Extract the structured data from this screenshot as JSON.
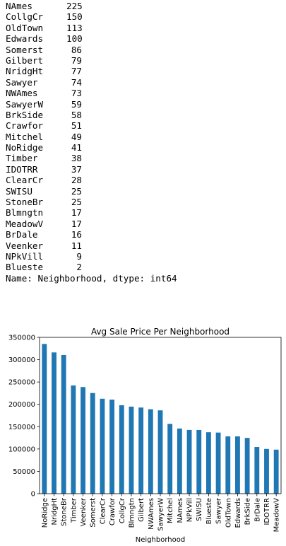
{
  "value_counts": {
    "rows": [
      {
        "name": "NAmes",
        "count": "225"
      },
      {
        "name": "CollgCr",
        "count": "150"
      },
      {
        "name": "OldTown",
        "count": "113"
      },
      {
        "name": "Edwards",
        "count": "100"
      },
      {
        "name": "Somerst",
        "count": "86"
      },
      {
        "name": "Gilbert",
        "count": "79"
      },
      {
        "name": "NridgHt",
        "count": "77"
      },
      {
        "name": "Sawyer",
        "count": "74"
      },
      {
        "name": "NWAmes",
        "count": "73"
      },
      {
        "name": "SawyerW",
        "count": "59"
      },
      {
        "name": "BrkSide",
        "count": "58"
      },
      {
        "name": "Crawfor",
        "count": "51"
      },
      {
        "name": "Mitchel",
        "count": "49"
      },
      {
        "name": "NoRidge",
        "count": "41"
      },
      {
        "name": "Timber",
        "count": "38"
      },
      {
        "name": "IDOTRR",
        "count": "37"
      },
      {
        "name": "ClearCr",
        "count": "28"
      },
      {
        "name": "SWISU",
        "count": "25"
      },
      {
        "name": "StoneBr",
        "count": "25"
      },
      {
        "name": "Blmngtn",
        "count": "17"
      },
      {
        "name": "MeadowV",
        "count": "17"
      },
      {
        "name": "BrDale",
        "count": "16"
      },
      {
        "name": "Veenker",
        "count": "11"
      },
      {
        "name": "NPkVill",
        "count": "9"
      },
      {
        "name": "Blueste",
        "count": "2"
      }
    ],
    "footer": "Name: Neighborhood, dtype: int64"
  },
  "chart_data": {
    "type": "bar",
    "title": "Avg Sale Price Per Neighborhood",
    "xlabel": "Neighborhood",
    "ylabel": "",
    "ylim": [
      0,
      350000
    ],
    "yticks": [
      0,
      50000,
      100000,
      150000,
      200000,
      250000,
      300000,
      350000
    ],
    "grid": false,
    "bar_color": "#1f77b4",
    "categories": [
      "NoRidge",
      "NridgHt",
      "StoneBr",
      "Timber",
      "Veenker",
      "Somerst",
      "ClearCr",
      "Crawfor",
      "CollgCr",
      "Blmngtn",
      "Gilbert",
      "NWAmes",
      "SawyerW",
      "Mitchel",
      "NAmes",
      "NPkVill",
      "SWISU",
      "Blueste",
      "Sawyer",
      "OldTown",
      "Edwards",
      "BrkSide",
      "BrDale",
      "IDOTRR",
      "MeadowV"
    ],
    "values": [
      335295,
      316271,
      310499,
      242247,
      238773,
      225380,
      212565,
      210625,
      197966,
      194871,
      192855,
      189050,
      186556,
      156271,
      145847,
      142694,
      142592,
      137500,
      136793,
      128226,
      128220,
      124834,
      104494,
      100124,
      98576
    ]
  }
}
